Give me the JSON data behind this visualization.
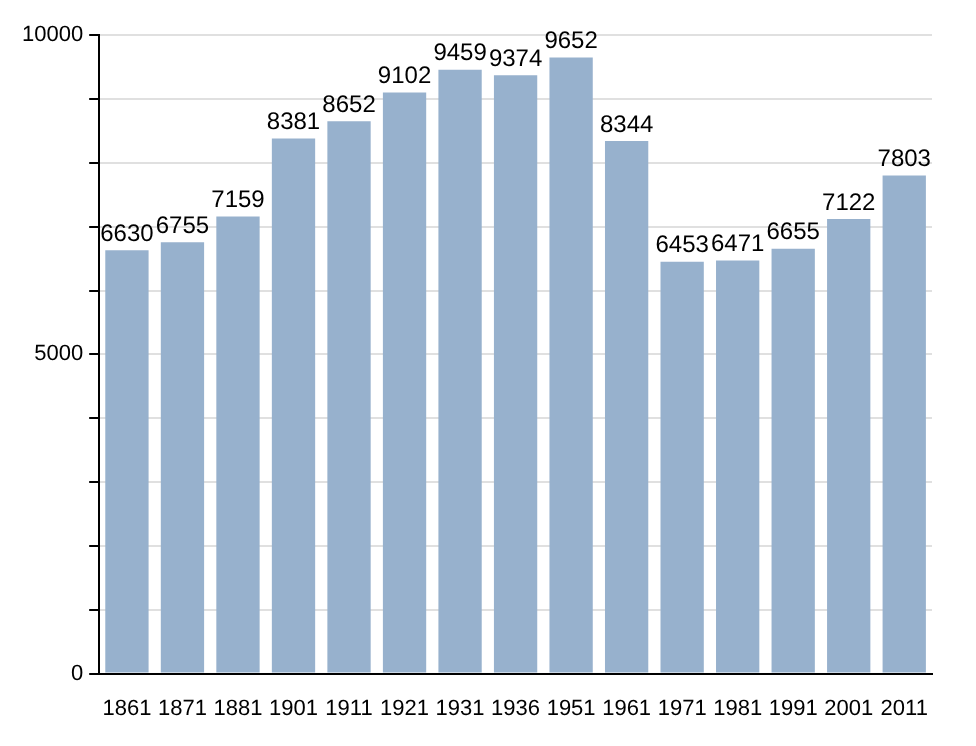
{
  "chart_data": {
    "type": "bar",
    "categories": [
      "1861",
      "1871",
      "1881",
      "1901",
      "1911",
      "1921",
      "1931",
      "1936",
      "1951",
      "1961",
      "1971",
      "1981",
      "1991",
      "2001",
      "2011"
    ],
    "values": [
      6630,
      6755,
      7159,
      8381,
      8652,
      9102,
      9459,
      9374,
      9652,
      8344,
      6453,
      6471,
      6655,
      7122,
      7803
    ],
    "color": "#97b1cd",
    "data_labels": true,
    "ylim": [
      0,
      10000
    ],
    "yticks": [
      0,
      {
        "value": 1000,
        "label": null
      },
      {
        "value": 2000,
        "label": null
      },
      {
        "value": 3000,
        "label": null
      },
      {
        "value": 4000,
        "label": null
      },
      5000,
      {
        "value": 6000,
        "label": null
      },
      {
        "value": 7000,
        "label": null
      },
      {
        "value": 8000,
        "label": null
      },
      {
        "value": 9000,
        "label": null
      },
      10000
    ],
    "grid": true
  }
}
